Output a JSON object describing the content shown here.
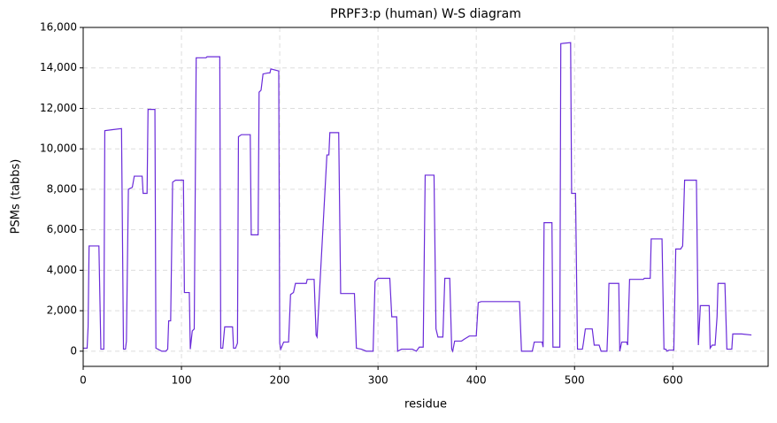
{
  "chart_data": {
    "type": "line",
    "title": "PRPF3:p (human) W-S diagram",
    "x_label": "residue",
    "y_label": "PSMs (tabbs)",
    "color": "#6a2bd9",
    "grid": true,
    "xlim": [
      0,
      697
    ],
    "xticks": [
      0,
      100,
      200,
      300,
      400,
      500,
      600
    ],
    "ylim": [
      -750,
      16000
    ],
    "yticks": [
      0,
      {
        "value": 2000,
        "label": "2,000"
      },
      {
        "value": 4000,
        "label": "4,000"
      },
      {
        "value": 6000,
        "label": "6,000"
      },
      {
        "value": 8000,
        "label": "8,000"
      },
      {
        "value": 10000,
        "label": "10,000"
      },
      {
        "value": 12000,
        "label": "12,000"
      },
      {
        "value": 14000,
        "label": "14,000"
      },
      {
        "value": 16000,
        "label": "16,000"
      }
    ],
    "x": [
      0,
      4,
      5,
      6,
      16,
      18,
      21,
      22,
      30,
      39,
      41,
      43,
      44,
      46,
      50,
      52,
      60,
      61,
      65,
      66,
      73,
      74,
      80,
      84,
      86,
      87,
      89,
      91,
      94,
      102,
      103,
      108,
      109,
      111,
      113,
      115,
      125,
      126,
      139,
      140,
      142,
      144,
      152,
      153,
      155,
      157,
      158,
      161,
      170,
      171,
      178,
      179,
      181,
      183,
      188,
      190,
      191,
      199,
      200,
      201,
      204,
      209,
      211,
      214,
      216,
      227,
      228,
      235,
      237,
      238,
      248,
      250,
      251,
      260,
      262,
      276,
      278,
      283,
      288,
      295,
      297,
      300,
      312,
      314,
      319,
      320,
      324,
      335,
      339,
      342,
      346,
      348,
      357,
      359,
      361,
      366,
      368,
      373,
      375,
      376,
      378,
      385,
      388,
      393,
      400,
      402,
      405,
      444,
      446,
      457,
      459,
      467,
      468,
      469,
      477,
      478,
      485,
      486,
      496,
      497,
      501,
      503,
      508,
      509,
      511,
      518,
      520,
      525,
      527,
      533,
      534,
      535,
      545,
      546,
      548,
      553,
      554,
      556,
      570,
      571,
      577,
      578,
      589,
      591,
      593,
      594,
      596,
      601,
      602,
      603,
      608,
      610,
      612,
      624,
      626,
      628,
      637,
      638,
      640,
      643,
      645,
      646,
      653,
      655,
      660,
      661,
      670,
      680
    ],
    "values": [
      150,
      150,
      1200,
      5200,
      5200,
      100,
      100,
      10900,
      10950,
      11000,
      100,
      100,
      500,
      8000,
      8100,
      8650,
      8650,
      7800,
      7800,
      11950,
      11950,
      150,
      0,
      0,
      100,
      1500,
      1500,
      8350,
      8450,
      8450,
      2900,
      2900,
      100,
      1000,
      1100,
      14500,
      14500,
      14550,
      14550,
      150,
      150,
      1200,
      1200,
      150,
      150,
      400,
      10600,
      10700,
      10700,
      5750,
      5750,
      12800,
      12900,
      13700,
      13750,
      13750,
      13950,
      13850,
      400,
      100,
      450,
      450,
      2800,
      2900,
      3350,
      3350,
      3550,
      3550,
      800,
      700,
      9700,
      9700,
      10800,
      10800,
      2850,
      2850,
      150,
      100,
      0,
      0,
      3450,
      3600,
      3600,
      1700,
      1700,
      0,
      100,
      100,
      0,
      200,
      200,
      8700,
      8700,
      1100,
      700,
      700,
      3600,
      3600,
      100,
      0,
      500,
      500,
      600,
      750,
      750,
      2400,
      2450,
      2450,
      0,
      0,
      450,
      450,
      200,
      6350,
      6350,
      200,
      200,
      15200,
      15250,
      7800,
      7800,
      100,
      100,
      400,
      1100,
      1100,
      300,
      300,
      0,
      0,
      1300,
      3350,
      3350,
      0,
      450,
      450,
      300,
      3550,
      3550,
      3600,
      3600,
      5550,
      5550,
      100,
      100,
      0,
      50,
      50,
      2650,
      5050,
      5050,
      5200,
      8450,
      8450,
      300,
      2250,
      2250,
      150,
      300,
      300,
      1700,
      3350,
      3350,
      100,
      100,
      850,
      850,
      800
    ]
  }
}
